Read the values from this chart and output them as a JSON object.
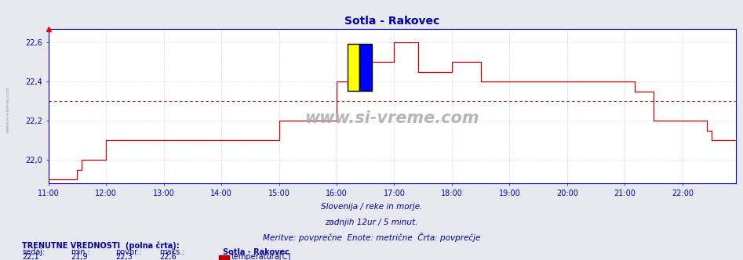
{
  "title": "Sotla - Rakovec",
  "subtitle1": "Slovenija / reke in morje.",
  "subtitle2": "zadnjih 12ur / 5 minut.",
  "subtitle3": "Meritve: povprečne  Enote: metrične  Črta: povprečje",
  "ylim": [
    21.88,
    22.67
  ],
  "yticks": [
    22.0,
    22.2,
    22.4,
    22.6
  ],
  "ytick_labels": [
    "22,0",
    "22,2",
    "22,4",
    "22,6"
  ],
  "xlim_hours": [
    11.0,
    22.92
  ],
  "xticks_hours": [
    11,
    12,
    13,
    14,
    15,
    16,
    17,
    18,
    19,
    20,
    21,
    22
  ],
  "xtick_labels": [
    "11:00",
    "12:00",
    "13:00",
    "14:00",
    "15:00",
    "16:00",
    "17:00",
    "18:00",
    "19:00",
    "20:00",
    "21:00",
    "22:00"
  ],
  "avg_line_y": 22.3,
  "line_color": "#cc0000",
  "avg_line_color": "#cc0000",
  "background_color": "#e8e8f0",
  "plot_bg_color": "#ffffff",
  "grid_color_h": "#ffaaaa",
  "grid_color_v": "#aaaaee",
  "axis_color": "#0000cc",
  "title_color": "#0000aa",
  "text_color": "#0000aa",
  "watermark_text": "www.si-vreme.com",
  "left_text": "www.si-vreme.com",
  "info_sedaj": "22,1",
  "info_min": "21,9",
  "info_povpr": "22,3",
  "info_maks": "22,6",
  "info_station": "Sotla - Rakovec",
  "info_param": "temperatura[C]",
  "time_points": [
    11.0,
    11.083,
    11.167,
    11.25,
    11.333,
    11.417,
    11.5,
    11.583,
    11.667,
    11.75,
    11.833,
    11.917,
    12.0,
    12.083,
    12.167,
    12.25,
    12.333,
    12.417,
    12.5,
    12.583,
    12.667,
    12.75,
    12.833,
    12.917,
    13.0,
    13.083,
    13.167,
    13.25,
    13.333,
    13.417,
    13.5,
    13.583,
    13.667,
    13.75,
    13.833,
    13.917,
    14.0,
    14.083,
    14.167,
    14.25,
    14.333,
    14.417,
    14.5,
    14.583,
    14.667,
    14.75,
    14.833,
    14.917,
    15.0,
    15.083,
    15.167,
    15.25,
    15.333,
    15.417,
    15.5,
    15.583,
    15.667,
    15.75,
    15.833,
    15.917,
    16.0,
    16.083,
    16.167,
    16.25,
    16.333,
    16.417,
    16.5,
    16.583,
    16.667,
    16.75,
    16.833,
    16.917,
    17.0,
    17.083,
    17.167,
    17.25,
    17.333,
    17.417,
    17.5,
    17.583,
    17.667,
    17.75,
    17.833,
    17.917,
    18.0,
    18.083,
    18.167,
    18.25,
    18.333,
    18.417,
    18.5,
    18.583,
    18.667,
    18.75,
    18.833,
    18.917,
    19.0,
    19.083,
    19.167,
    19.25,
    19.333,
    19.417,
    19.5,
    19.583,
    19.667,
    19.75,
    19.833,
    19.917,
    20.0,
    20.083,
    20.167,
    20.25,
    20.333,
    20.417,
    20.5,
    20.583,
    20.667,
    20.75,
    20.833,
    20.917,
    21.0,
    21.083,
    21.167,
    21.25,
    21.333,
    21.417,
    21.5,
    21.583,
    21.667,
    21.75,
    21.833,
    21.917,
    22.0,
    22.083,
    22.167,
    22.25,
    22.333,
    22.417,
    22.5,
    22.583,
    22.667,
    22.75,
    22.833,
    22.917
  ],
  "temp_values": [
    21.9,
    21.9,
    21.9,
    21.9,
    21.9,
    21.9,
    21.95,
    22.0,
    22.0,
    22.0,
    22.0,
    22.0,
    22.1,
    22.1,
    22.1,
    22.1,
    22.1,
    22.1,
    22.1,
    22.1,
    22.1,
    22.1,
    22.1,
    22.1,
    22.1,
    22.1,
    22.1,
    22.1,
    22.1,
    22.1,
    22.1,
    22.1,
    22.1,
    22.1,
    22.1,
    22.1,
    22.1,
    22.1,
    22.1,
    22.1,
    22.1,
    22.1,
    22.1,
    22.1,
    22.1,
    22.1,
    22.1,
    22.1,
    22.2,
    22.2,
    22.2,
    22.2,
    22.2,
    22.2,
    22.2,
    22.2,
    22.2,
    22.2,
    22.2,
    22.2,
    22.4,
    22.4,
    22.4,
    22.4,
    22.4,
    22.4,
    22.5,
    22.5,
    22.5,
    22.5,
    22.5,
    22.5,
    22.6,
    22.6,
    22.6,
    22.6,
    22.6,
    22.45,
    22.45,
    22.45,
    22.45,
    22.45,
    22.45,
    22.45,
    22.5,
    22.5,
    22.5,
    22.5,
    22.5,
    22.5,
    22.4,
    22.4,
    22.4,
    22.4,
    22.4,
    22.4,
    22.4,
    22.4,
    22.4,
    22.4,
    22.4,
    22.4,
    22.4,
    22.4,
    22.4,
    22.4,
    22.4,
    22.4,
    22.4,
    22.4,
    22.4,
    22.4,
    22.4,
    22.4,
    22.4,
    22.4,
    22.4,
    22.4,
    22.4,
    22.4,
    22.4,
    22.4,
    22.35,
    22.35,
    22.35,
    22.35,
    22.2,
    22.2,
    22.2,
    22.2,
    22.2,
    22.2,
    22.2,
    22.2,
    22.2,
    22.2,
    22.2,
    22.15,
    22.1,
    22.1,
    22.1,
    22.1,
    22.1,
    22.1
  ]
}
